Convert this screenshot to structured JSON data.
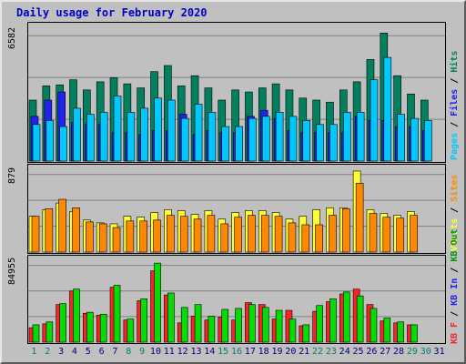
{
  "title": "Daily usage for February 2020",
  "colors": {
    "hits": "#00805c",
    "files": "#2222ee",
    "pages": "#00c8ff",
    "visits": "#ffff33",
    "sites": "#ff8800",
    "kb_in": "#009900",
    "kb_out": "#00dd00",
    "kb_f": "#ff2222",
    "weekend_day": "#00806a",
    "weekday": "#000080"
  },
  "chart_data": [
    {
      "type": "bar",
      "panel": "top",
      "ymax_label": "6582",
      "ymax": 6582,
      "legend": [
        "Pages",
        "/",
        "Files",
        "/",
        "Hits"
      ],
      "legend_colors": [
        "#00c8ff",
        "#000000",
        "#2222ee",
        "#000000",
        "#00805c"
      ],
      "categories": [
        "1",
        "2",
        "3",
        "4",
        "5",
        "6",
        "7",
        "8",
        "9",
        "10",
        "11",
        "12",
        "13",
        "14",
        "15",
        "16",
        "17",
        "18",
        "19",
        "20",
        "21",
        "22",
        "23",
        "24",
        "25",
        "26",
        "27",
        "28",
        "29",
        "30",
        "31"
      ],
      "series": [
        {
          "name": "Hits",
          "values": [
            3000,
            3700,
            3750,
            4000,
            3500,
            3900,
            4100,
            3800,
            3600,
            4400,
            4700,
            3700,
            4200,
            3600,
            3000,
            3500,
            3400,
            3600,
            3800,
            3500,
            3100,
            3000,
            2900,
            3500,
            3900,
            5000,
            6300,
            4200,
            3300,
            3000,
            0
          ]
        },
        {
          "name": "Files",
          "values": [
            2200,
            3000,
            3400,
            1900,
            1800,
            1800,
            1400,
            1400,
            1300,
            1500,
            1500,
            2300,
            1300,
            1500,
            1400,
            1400,
            2200,
            2500,
            2100,
            1500,
            1400,
            1400,
            1400,
            1400,
            2200,
            2000,
            2000,
            1700,
            1700,
            1500,
            0
          ]
        },
        {
          "name": "Pages",
          "values": [
            1800,
            2000,
            1700,
            2600,
            2300,
            2400,
            3200,
            2400,
            2600,
            3100,
            3000,
            2100,
            2800,
            2400,
            1700,
            1700,
            2100,
            2200,
            2400,
            2200,
            2000,
            1800,
            1800,
            2400,
            2400,
            4000,
            5100,
            2300,
            2100,
            2000,
            0
          ]
        }
      ]
    },
    {
      "type": "bar",
      "panel": "middle",
      "ymax_label": "879",
      "ymax": 879,
      "legend": [
        "Visits",
        "/",
        "Sites"
      ],
      "legend_colors": [
        "#ffff33",
        "#000000",
        "#ff8800"
      ],
      "categories": [
        "1",
        "2",
        "3",
        "4",
        "5",
        "6",
        "7",
        "8",
        "9",
        "10",
        "11",
        "12",
        "13",
        "14",
        "15",
        "16",
        "17",
        "18",
        "19",
        "20",
        "21",
        "22",
        "23",
        "24",
        "25",
        "26",
        "27",
        "28",
        "29",
        "30",
        "31"
      ],
      "series": [
        {
          "name": "Visits",
          "values": [
            380,
            450,
            520,
            430,
            340,
            310,
            300,
            380,
            370,
            420,
            450,
            440,
            400,
            440,
            350,
            420,
            440,
            440,
            420,
            350,
            380,
            450,
            470,
            470,
            860,
            450,
            410,
            390,
            430,
            0,
            0
          ]
        },
        {
          "name": "Sites",
          "values": [
            380,
            460,
            560,
            470,
            320,
            300,
            260,
            330,
            330,
            340,
            390,
            380,
            350,
            390,
            300,
            370,
            390,
            390,
            380,
            310,
            290,
            290,
            390,
            460,
            730,
            410,
            370,
            360,
            390,
            0,
            0
          ]
        }
      ]
    },
    {
      "type": "bar",
      "panel": "bottom",
      "ymax_label": "84955",
      "ymax": 84955,
      "legend": [
        "KB F",
        "/",
        "KB In",
        "/",
        "KB Out"
      ],
      "legend_colors": [
        "#ff2222",
        "#000000",
        "#2222ee",
        "#000000",
        "#009900"
      ],
      "categories": [
        "1",
        "2",
        "3",
        "4",
        "5",
        "6",
        "7",
        "8",
        "9",
        "10",
        "11",
        "12",
        "13",
        "14",
        "15",
        "16",
        "17",
        "18",
        "19",
        "20",
        "21",
        "22",
        "23",
        "24",
        "25",
        "26",
        "27",
        "28",
        "29",
        "30",
        "31"
      ],
      "series": [
        {
          "name": "KB F",
          "values": [
            15000,
            19000,
            39000,
            53000,
            30000,
            28000,
            57000,
            23000,
            43000,
            74000,
            49000,
            20000,
            27000,
            23000,
            26000,
            23000,
            41000,
            39000,
            24000,
            33000,
            17000,
            32000,
            42000,
            50000,
            55000,
            39000,
            22000,
            20000,
            18000,
            0,
            0
          ]
        },
        {
          "name": "KB Out",
          "values": [
            18000,
            21000,
            40000,
            55000,
            31000,
            29000,
            59000,
            24000,
            45000,
            82000,
            51000,
            36000,
            39000,
            27000,
            34000,
            35000,
            39000,
            36000,
            33000,
            24000,
            18000,
            38000,
            45000,
            52000,
            48000,
            35000,
            25000,
            21000,
            18000,
            0,
            0
          ]
        }
      ]
    }
  ],
  "x_labels": [
    "1",
    "2",
    "3",
    "4",
    "5",
    "6",
    "7",
    "8",
    "9",
    "10",
    "11",
    "12",
    "13",
    "14",
    "15",
    "16",
    "17",
    "18",
    "19",
    "20",
    "21",
    "22",
    "23",
    "24",
    "25",
    "26",
    "27",
    "28",
    "29",
    "30",
    "31"
  ],
  "weekend_days": [
    1,
    2,
    8,
    9,
    15,
    16,
    22,
    23,
    29,
    30
  ]
}
